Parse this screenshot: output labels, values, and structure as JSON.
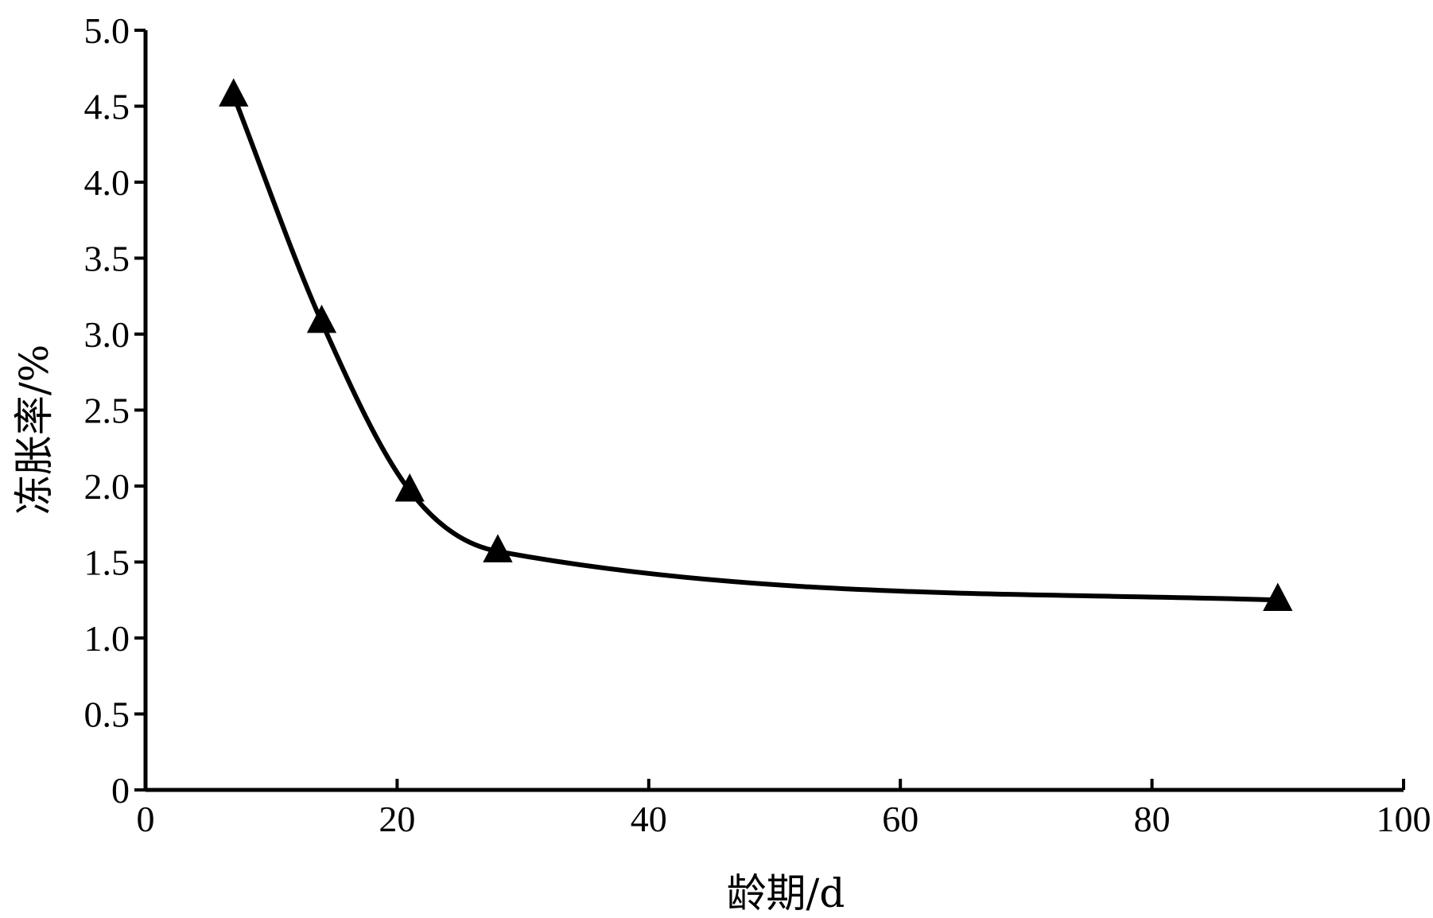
{
  "chart_data": {
    "type": "line",
    "title": "",
    "xlabel": "龄期/d",
    "ylabel": "冻胀率/%",
    "xlim": [
      0,
      100
    ],
    "ylim": [
      0,
      5.0
    ],
    "x_ticks": [
      0,
      20,
      40,
      60,
      80,
      100
    ],
    "x_tick_labels": [
      "0",
      "20",
      "40",
      "60",
      "80",
      "100"
    ],
    "y_ticks": [
      0,
      0.5,
      1.0,
      1.5,
      2.0,
      2.5,
      3.0,
      3.5,
      4.0,
      4.5,
      5.0
    ],
    "y_tick_labels": [
      "0",
      "0.5",
      "1.0",
      "1.5",
      "2.0",
      "2.5",
      "3.0",
      "3.5",
      "4.0",
      "4.5",
      "5.0"
    ],
    "grid": false,
    "legend": "none",
    "marker": "triangle",
    "line_style": "smooth",
    "color": "#000000",
    "series": [
      {
        "x": [
          7,
          14,
          21,
          28,
          90
        ],
        "y": [
          4.57,
          3.08,
          1.97,
          1.57,
          1.25
        ]
      }
    ]
  }
}
